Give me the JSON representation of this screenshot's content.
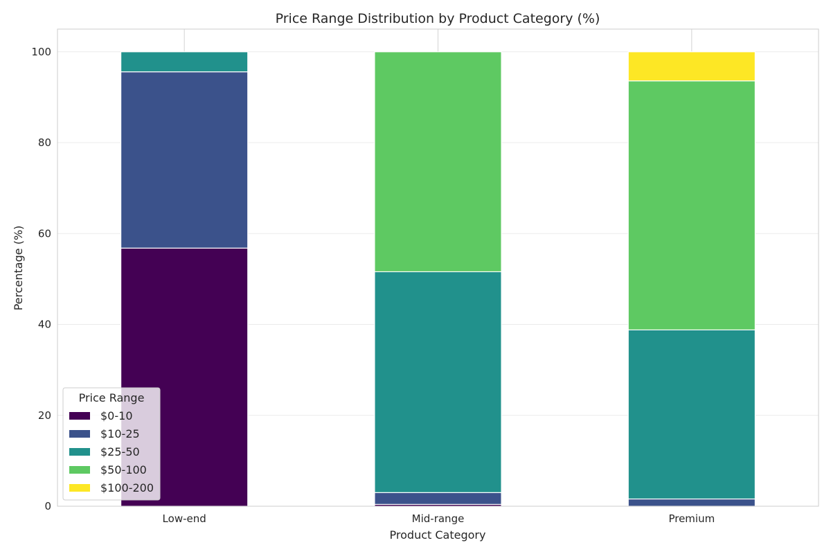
{
  "chart_data": {
    "type": "bar",
    "stacked": true,
    "title": "Price Range Distribution by Product Category (%)",
    "xlabel": "Product Category",
    "ylabel": "Percentage (%)",
    "categories": [
      "Low-end",
      "Mid-range",
      "Premium"
    ],
    "ylim": [
      0,
      105
    ],
    "yticks": [
      0,
      20,
      40,
      60,
      80,
      100
    ],
    "grid": true,
    "legend": {
      "title": "Price Range",
      "position": "lower-left"
    },
    "series": [
      {
        "name": "$0-10",
        "color": "#440154",
        "values": [
          56.8,
          0.4,
          0.0
        ]
      },
      {
        "name": "$10-25",
        "color": "#3b528b",
        "values": [
          38.8,
          2.6,
          1.6
        ]
      },
      {
        "name": "$25-50",
        "color": "#21918c",
        "values": [
          4.4,
          48.6,
          37.2
        ]
      },
      {
        "name": "$50-100",
        "color": "#5ec962",
        "values": [
          0.0,
          48.4,
          54.8
        ]
      },
      {
        "name": "$100-200",
        "color": "#fde725",
        "values": [
          0.0,
          0.0,
          6.4
        ]
      }
    ]
  }
}
